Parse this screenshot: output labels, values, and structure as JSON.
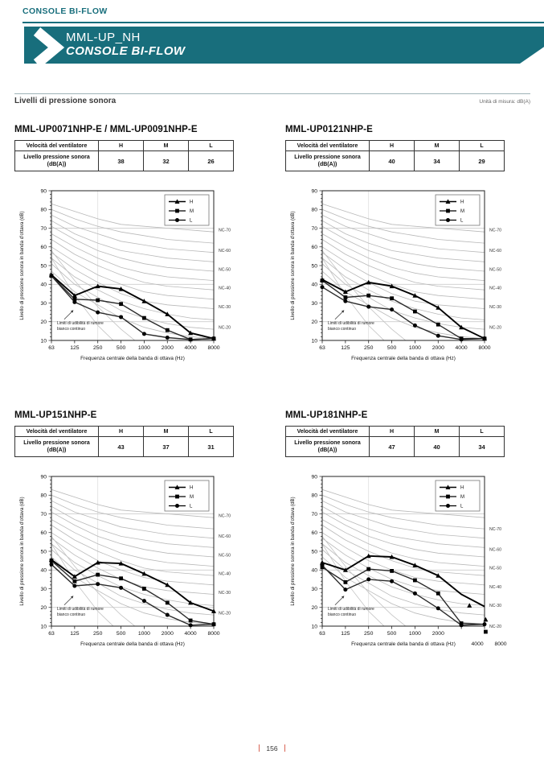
{
  "page": {
    "top_label": "CONSOLE BI-FLOW",
    "banner": {
      "model": "MML-UP_NH",
      "series": "CONSOLE BI-FLOW"
    },
    "section_title": "Livelli di pressione sonora",
    "unit_note": "Unità di misura: dB(A)",
    "page_number": "156",
    "accent_color": "#186e7c",
    "footer_bar_color": "#d96455"
  },
  "panels": [
    {
      "title": "MML-UP0071NHP-E / MML-UP0091NHP-E",
      "table": {
        "header_label": "Velocità del ventilatore",
        "columns": [
          "H",
          "M",
          "L"
        ],
        "row_label": "Livello pressione sonora (dB(A))",
        "values": [
          38,
          32,
          26
        ]
      }
    },
    {
      "title": "MML-UP0121NHP-E",
      "table": {
        "header_label": "Velocità del ventilatore",
        "columns": [
          "H",
          "M",
          "L"
        ],
        "row_label": "Livello pressione sonora (dB(A))",
        "values": [
          40,
          34,
          29
        ]
      }
    },
    {
      "title": "MML-UP151NHP-E",
      "table": {
        "header_label": "Velocità del ventilatore",
        "columns": [
          "H",
          "M",
          "L"
        ],
        "row_label": "Livello pressione sonora (dB(A))",
        "values": [
          43,
          37,
          31
        ]
      }
    },
    {
      "title": "MML-UP181NHP-E",
      "table": {
        "header_label": "Velocità del ventilatore",
        "columns": [
          "H",
          "M",
          "L"
        ],
        "row_label": "Livello pressione sonora (dB(A))",
        "values": [
          47,
          40,
          34
        ]
      }
    }
  ],
  "chart_data": [
    {
      "type": "line",
      "title": "MML-UP0071NHP-E / MML-UP0091NHP-E",
      "x_categories": [
        "63",
        "125",
        "250",
        "500",
        "1000",
        "2000",
        "4000",
        "8000"
      ],
      "xlabel": "Frequenza centrale della banda di ottava (Hz)",
      "ylabel": "Livello di pressione sonora in banda d'ottava (dB)",
      "ylim": [
        10,
        90
      ],
      "y_ticks": [
        10,
        20,
        30,
        40,
        50,
        60,
        70,
        80,
        90
      ],
      "gridlines_horizontal": [
        20,
        40,
        70
      ],
      "legend_position": "top-right",
      "nc_labels": [
        "NC-70",
        "NC-60",
        "NC-50",
        "NC-40",
        "NC-30",
        "NC-20"
      ],
      "annotation_lines": [
        "Limiti di udibilità di rumore",
        "bianco continuo"
      ],
      "series": [
        {
          "name": "H",
          "marker": "triangle",
          "values": [
            45,
            34,
            39,
            37.5,
            31,
            24,
            14,
            11
          ]
        },
        {
          "name": "M",
          "marker": "square",
          "values": [
            44.5,
            32,
            31.5,
            29.5,
            22,
            15.5,
            10.5,
            11
          ]
        },
        {
          "name": "L",
          "marker": "circle",
          "values": [
            44.5,
            30.5,
            25,
            22.5,
            13.5,
            11.5,
            10.5,
            11
          ]
        }
      ]
    },
    {
      "type": "line",
      "title": "MML-UP0121NHP-E",
      "x_categories": [
        "63",
        "125",
        "250",
        "500",
        "1000",
        "2000",
        "4000",
        "8000"
      ],
      "xlabel": "Frequenza centrale della banda di ottava (Hz)",
      "ylabel": "Livello di pressione sonora in banda d'ottava (dB)",
      "ylim": [
        10,
        90
      ],
      "y_ticks": [
        10,
        20,
        30,
        40,
        50,
        60,
        70,
        80,
        90
      ],
      "gridlines_horizontal": [
        20,
        40,
        70
      ],
      "legend_position": "top-right",
      "nc_labels": [
        "NC-70",
        "NC-60",
        "NC-50",
        "NC-40",
        "NC-30",
        "NC-20"
      ],
      "annotation_lines": [
        "Limiti di udibilità di rumore",
        "bianco continuo"
      ],
      "series": [
        {
          "name": "H",
          "marker": "triangle",
          "values": [
            42.5,
            36,
            41,
            39,
            34,
            27.5,
            17,
            11
          ]
        },
        {
          "name": "M",
          "marker": "square",
          "values": [
            42,
            33,
            34,
            32.5,
            25.5,
            18.5,
            11,
            11
          ]
        },
        {
          "name": "L",
          "marker": "circle",
          "values": [
            38.5,
            31,
            28,
            26.5,
            18,
            12.5,
            10.5,
            11
          ]
        }
      ]
    },
    {
      "type": "line",
      "title": "MML-UP151NHP-E",
      "x_categories": [
        "63",
        "125",
        "250",
        "500",
        "1000",
        "2000",
        "4000",
        "8000"
      ],
      "xlabel": "Frequenza centrale della banda di ottava (Hz)",
      "ylabel": "Livello di pressione sonora in banda d'ottava (dB)",
      "ylim": [
        10,
        90
      ],
      "y_ticks": [
        10,
        20,
        30,
        40,
        50,
        60,
        70,
        80,
        90
      ],
      "gridlines_horizontal": [
        20,
        40,
        70
      ],
      "legend_position": "top-right",
      "nc_labels": [
        "NC-70",
        "NC-60",
        "NC-50",
        "NC-40",
        "NC-30",
        "NC-20"
      ],
      "annotation_lines": [
        "Limiti di udibilità di rumore",
        "bianco continuo"
      ],
      "series": [
        {
          "name": "H",
          "marker": "triangle",
          "values": [
            45.5,
            36.5,
            44,
            43.5,
            38,
            32,
            22.5,
            18
          ]
        },
        {
          "name": "M",
          "marker": "square",
          "values": [
            45,
            34,
            37.5,
            35.5,
            30,
            22.5,
            13,
            11
          ]
        },
        {
          "name": "L",
          "marker": "circle",
          "values": [
            43,
            31.5,
            32.5,
            30.5,
            23.5,
            16,
            10.5,
            11
          ]
        }
      ]
    },
    {
      "type": "line",
      "title": "MML-UP181NHP-E",
      "x_categories": [
        "63",
        "125",
        "250",
        "500",
        "1000",
        "2000",
        "4000",
        "8000"
      ],
      "xlabel": "Frequenza centrale della banda di ottava (Hz)",
      "ylabel": "Livello di pressione sonora in banda d'ottava (dB)",
      "ylim": [
        10,
        90
      ],
      "y_ticks": [
        10,
        20,
        30,
        40,
        50,
        60,
        70,
        80,
        90
      ],
      "gridlines_horizontal": [
        20,
        40,
        70
      ],
      "legend_position": "top-right",
      "nc_labels": [
        "NC-70",
        "NC-60",
        "NC-50",
        "NC-40",
        "NC-30",
        "NC-20"
      ],
      "annotation_lines": [
        "Limiti di udibilità di rumore",
        "bianco continuo"
      ],
      "series": [
        {
          "name": "H",
          "marker": "triangle",
          "values": [
            44,
            40,
            47.5,
            47,
            42.5,
            37,
            27,
            20.5
          ],
          "no_marker_at": [
            6,
            7
          ]
        },
        {
          "name": "M",
          "marker": "square",
          "values": [
            41.5,
            33.5,
            40.5,
            39.5,
            34.5,
            27.5,
            11.5,
            11
          ],
          "no_marker_at": [
            7
          ]
        },
        {
          "name": "L",
          "marker": "circle",
          "values": [
            42.5,
            29.5,
            35,
            34,
            27.5,
            19.5,
            10.5,
            11
          ]
        }
      ],
      "quirks": {
        "x_label_shift_last_two": true,
        "nc_label_shift_db": -7,
        "stray_markers": [
          {
            "marker": "triangle",
            "xi": 6.35,
            "value": 21
          },
          {
            "marker": "triangle",
            "xi": 7.05,
            "value": 13.5
          },
          {
            "marker": "square",
            "xi": 7.05,
            "value": 7
          }
        ]
      }
    }
  ],
  "nc_reference": {
    "nc_curves": [
      {
        "name": "NC-15",
        "values": [
          47,
          36,
          29,
          22,
          17,
          14,
          12,
          11
        ]
      },
      {
        "name": "NC-20",
        "values": [
          51,
          40,
          33,
          26,
          22,
          19,
          17,
          16
        ]
      },
      {
        "name": "NC-25",
        "values": [
          54,
          44,
          37,
          31,
          27,
          24,
          22,
          21
        ]
      },
      {
        "name": "NC-30",
        "values": [
          57,
          48,
          41,
          35,
          31,
          29,
          28,
          27
        ]
      },
      {
        "name": "NC-35",
        "values": [
          60,
          52,
          45,
          40,
          36,
          34,
          33,
          32
        ]
      },
      {
        "name": "NC-40",
        "values": [
          64,
          56,
          50,
          45,
          41,
          39,
          38,
          37
        ]
      },
      {
        "name": "NC-45",
        "values": [
          67,
          60,
          54,
          49,
          46,
          44,
          43,
          42
        ]
      },
      {
        "name": "NC-50",
        "values": [
          71,
          64,
          58,
          54,
          51,
          49,
          48,
          47
        ]
      },
      {
        "name": "NC-55",
        "values": [
          74,
          67,
          62,
          58,
          56,
          54,
          53,
          52
        ]
      },
      {
        "name": "NC-60",
        "values": [
          77,
          71,
          67,
          63,
          61,
          59,
          58,
          57
        ]
      },
      {
        "name": "NC-65",
        "values": [
          80,
          75,
          71,
          68,
          66,
          64,
          63,
          62
        ]
      },
      {
        "name": "NC-70",
        "values": [
          83,
          79,
          75,
          72,
          71,
          70,
          69,
          68
        ]
      }
    ],
    "audibility_curves": [
      [
        54,
        34,
        18,
        6,
        -6,
        -18,
        -30,
        -42
      ],
      [
        58,
        42,
        28,
        16,
        6,
        -4,
        -14,
        -24
      ]
    ]
  }
}
